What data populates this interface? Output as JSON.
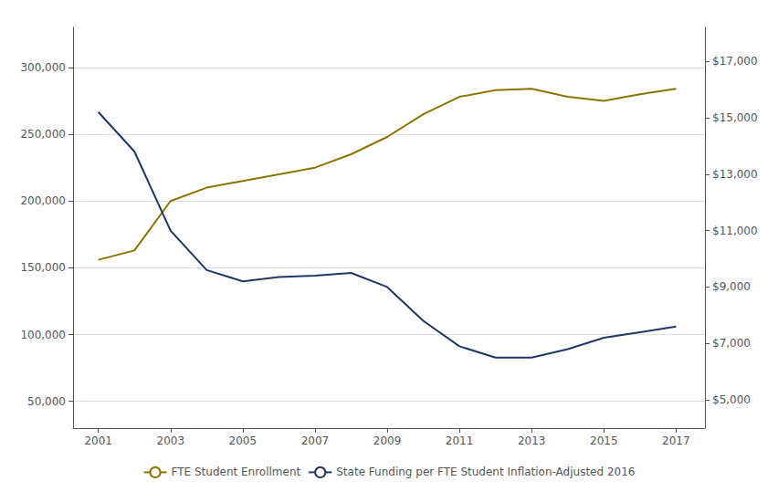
{
  "chart_data": {
    "type": "line",
    "x": [
      2001,
      2002,
      2003,
      2004,
      2005,
      2006,
      2007,
      2008,
      2009,
      2010,
      2011,
      2012,
      2013,
      2014,
      2015,
      2016,
      2017
    ],
    "series": [
      {
        "name": "FTE Student Enrollment",
        "color": "#8B7500",
        "values": [
          156000,
          163000,
          200000,
          210000,
          215000,
          220000,
          225000,
          235000,
          248000,
          265000,
          278000,
          283000,
          284000,
          278000,
          275000,
          280000,
          284000
        ]
      },
      {
        "name": "State Funding per FTE Student Inflation-Adjusted 2016",
        "color": "#1F3864",
        "axis": "y2",
        "values": [
          15200,
          13800,
          11000,
          9600,
          9200,
          9350,
          9400,
          9500,
          9000,
          7800,
          6900,
          6500,
          6500,
          6800,
          7200,
          7400,
          7600
        ]
      }
    ],
    "xlim": [
      2000.3,
      2017.8
    ],
    "xticks": [
      2001,
      2003,
      2005,
      2007,
      2009,
      2011,
      2013,
      2015,
      2017
    ],
    "ylim": [
      30000,
      330000
    ],
    "yticks": [
      {
        "value": 50000,
        "label": "50,000"
      },
      {
        "value": 100000,
        "label": "100,000"
      },
      {
        "value": 150000,
        "label": "150,000"
      },
      {
        "value": 200000,
        "label": "200,000"
      },
      {
        "value": 250000,
        "label": "250,000"
      },
      {
        "value": 300000,
        "label": "300,000"
      }
    ],
    "y2lim": [
      4000,
      18200
    ],
    "y2ticks": [
      {
        "value": 5000,
        "label": "$5,000"
      },
      {
        "value": 7000,
        "label": "$7,000"
      },
      {
        "value": 9000,
        "label": "$9,000"
      },
      {
        "value": 11000,
        "label": "$11,000"
      },
      {
        "value": 13000,
        "label": "$13,000"
      },
      {
        "value": 15000,
        "label": "$15,000"
      },
      {
        "value": 17000,
        "label": "$17,000"
      }
    ],
    "grid": true,
    "legend": "bottom"
  }
}
